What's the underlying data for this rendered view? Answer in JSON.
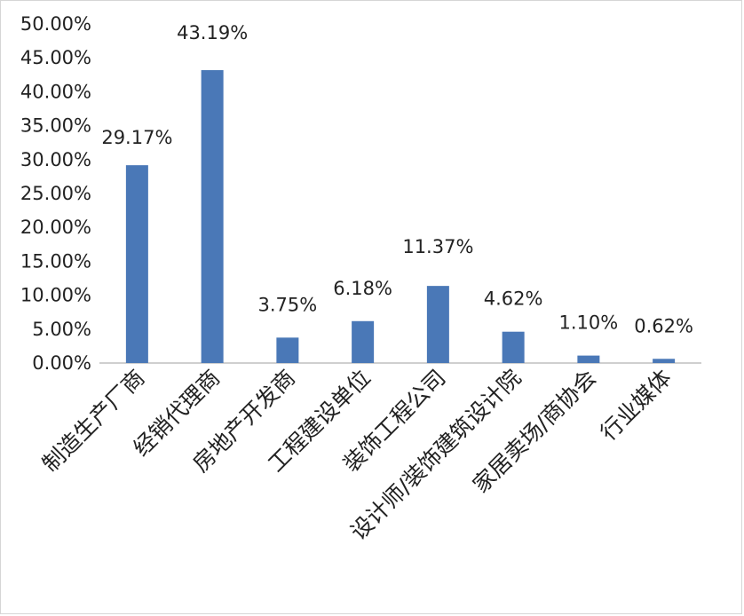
{
  "chart_data": {
    "type": "bar",
    "categories": [
      "制造生产厂商",
      "经销代理商",
      "房地产开发商",
      "工程建设单位",
      "装饰工程公司",
      "设计师/装饰建筑设计院",
      "家居卖场/商协会",
      "行业媒体"
    ],
    "values": [
      29.17,
      43.19,
      3.75,
      6.18,
      11.37,
      4.62,
      1.1,
      0.62
    ],
    "data_labels": [
      "29.17%",
      "43.19%",
      "3.75%",
      "6.18%",
      "11.37%",
      "4.62%",
      "1.10%",
      "0.62%"
    ],
    "yticks": [
      "0.00%",
      "5.00%",
      "10.00%",
      "15.00%",
      "20.00%",
      "25.00%",
      "30.00%",
      "35.00%",
      "40.00%",
      "45.00%",
      "50.00%"
    ],
    "ylim": [
      0,
      50
    ],
    "grid": false,
    "legend": "none",
    "bar_color": "#4a78b7"
  }
}
